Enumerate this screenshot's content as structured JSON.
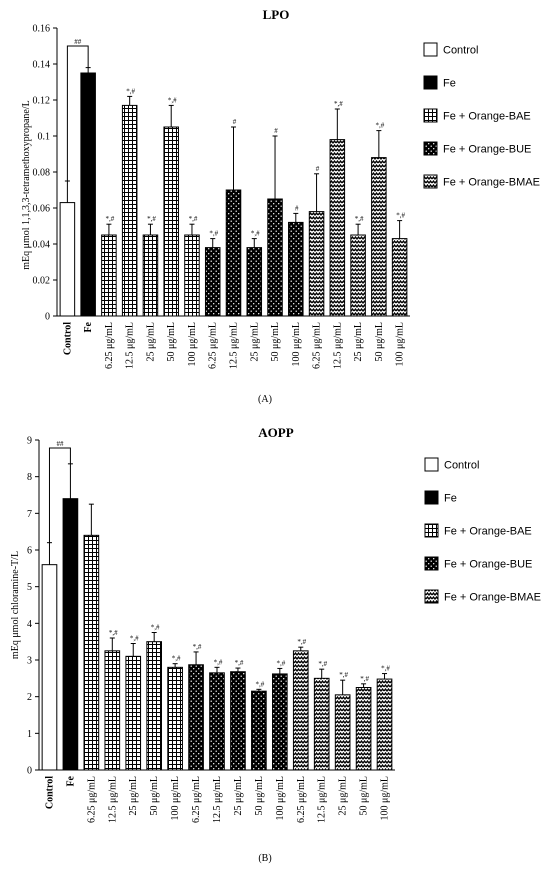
{
  "chart_data": [
    {
      "type": "bar",
      "panel": "(A)",
      "title": "LPO",
      "ylabel": "mEq μmol 1,1,3,3-tetramethoxypropane/L",
      "ylim": [
        0,
        0.16
      ],
      "yticks": [
        "0",
        "0.02",
        "0.04",
        "0.06",
        "0.08",
        "0.1",
        "0.12",
        "0.14",
        "0.16"
      ],
      "categories": [
        "Control",
        "Fe",
        "6.25 μg/mL",
        "12.5 μg/mL",
        "25 μg/mL",
        "50 μg/mL",
        "100 μg/mL",
        "6.25 μg/mL",
        "12.5 μg/mL",
        "25 μg/mL",
        "50 μg/mL",
        "100 μg/mL",
        "6.25 μg/mL",
        "12.5 μg/mL",
        "25 μg/mL",
        "50 μg/mL",
        "100 μg/mL"
      ],
      "groups": [
        "Control",
        "Fe",
        "BAE",
        "BAE",
        "BAE",
        "BAE",
        "BAE",
        "BUE",
        "BUE",
        "BUE",
        "BUE",
        "BUE",
        "BMAE",
        "BMAE",
        "BMAE",
        "BMAE",
        "BMAE"
      ],
      "values": [
        0.063,
        0.135,
        0.045,
        0.117,
        0.045,
        0.105,
        0.045,
        0.038,
        0.07,
        0.038,
        0.065,
        0.052,
        0.058,
        0.098,
        0.045,
        0.088,
        0.043
      ],
      "errors": [
        0.012,
        0.003,
        0.006,
        0.005,
        0.006,
        0.012,
        0.006,
        0.005,
        0.035,
        0.005,
        0.035,
        0.005,
        0.021,
        0.017,
        0.006,
        0.015,
        0.01
      ],
      "annotations": [
        "",
        "",
        "*,#",
        "*,#",
        "*,#",
        "*,#",
        "*,#",
        "*,#",
        "#",
        "*,#",
        "#",
        "#",
        "#",
        "*,#",
        "*,#",
        "*,#",
        "*,#"
      ],
      "bracket_label": "##",
      "legend": [
        {
          "label": "Control",
          "pattern": "white"
        },
        {
          "label": "Fe",
          "pattern": "black"
        },
        {
          "label": "Fe + Orange-BAE",
          "pattern": "grid"
        },
        {
          "label": "Fe + Orange-BUE",
          "pattern": "dots"
        },
        {
          "label": "Fe + Orange-BMAE",
          "pattern": "zigzag"
        }
      ]
    },
    {
      "type": "bar",
      "panel": "(B)",
      "title": "AOPP",
      "ylabel": "mEq μmol chloramine-T/L",
      "ylim": [
        0,
        9
      ],
      "yticks": [
        "0",
        "1",
        "2",
        "3",
        "4",
        "5",
        "6",
        "7",
        "8",
        "9"
      ],
      "categories": [
        "Control",
        "Fe",
        "6.25 μg/mL",
        "12.5 μg/mL",
        "25 μg/mL",
        "50 μg/mL",
        "100 μg/mL",
        "6.25 μg/mL",
        "12.5 μg/mL",
        "25 μg/mL",
        "50 μg/mL",
        "100 μg/mL",
        "6.25 μg/mL",
        "12.5 μg/mL",
        "25 μg/mL",
        "50 μg/mL",
        "100 μg/mL"
      ],
      "groups": [
        "Control",
        "Fe",
        "BAE",
        "BAE",
        "BAE",
        "BAE",
        "BAE",
        "BUE",
        "BUE",
        "BUE",
        "BUE",
        "BUE",
        "BMAE",
        "BMAE",
        "BMAE",
        "BMAE",
        "BMAE"
      ],
      "values": [
        5.6,
        7.4,
        6.4,
        3.25,
        3.1,
        3.5,
        2.8,
        2.87,
        2.65,
        2.68,
        2.15,
        2.62,
        3.25,
        2.5,
        2.05,
        2.25,
        2.48
      ],
      "errors": [
        0.6,
        0.95,
        0.85,
        0.35,
        0.35,
        0.25,
        0.1,
        0.35,
        0.15,
        0.1,
        0.05,
        0.15,
        0.1,
        0.25,
        0.4,
        0.1,
        0.15
      ],
      "annotations": [
        "",
        "",
        "",
        "*,#",
        "*,#",
        "*,#",
        "*,#",
        "*,#",
        "*,#",
        "*,#",
        "*,#",
        "*,#",
        "*,#",
        "*,#",
        "*,#",
        "*,#",
        "*,#"
      ],
      "bracket_label": "##",
      "legend": [
        {
          "label": "Control",
          "pattern": "white"
        },
        {
          "label": "Fe",
          "pattern": "black"
        },
        {
          "label": "Fe + Orange-BAE",
          "pattern": "grid"
        },
        {
          "label": "Fe + Orange-BUE",
          "pattern": "dots"
        },
        {
          "label": "Fe + Orange-BMAE",
          "pattern": "zigzag"
        }
      ]
    }
  ]
}
